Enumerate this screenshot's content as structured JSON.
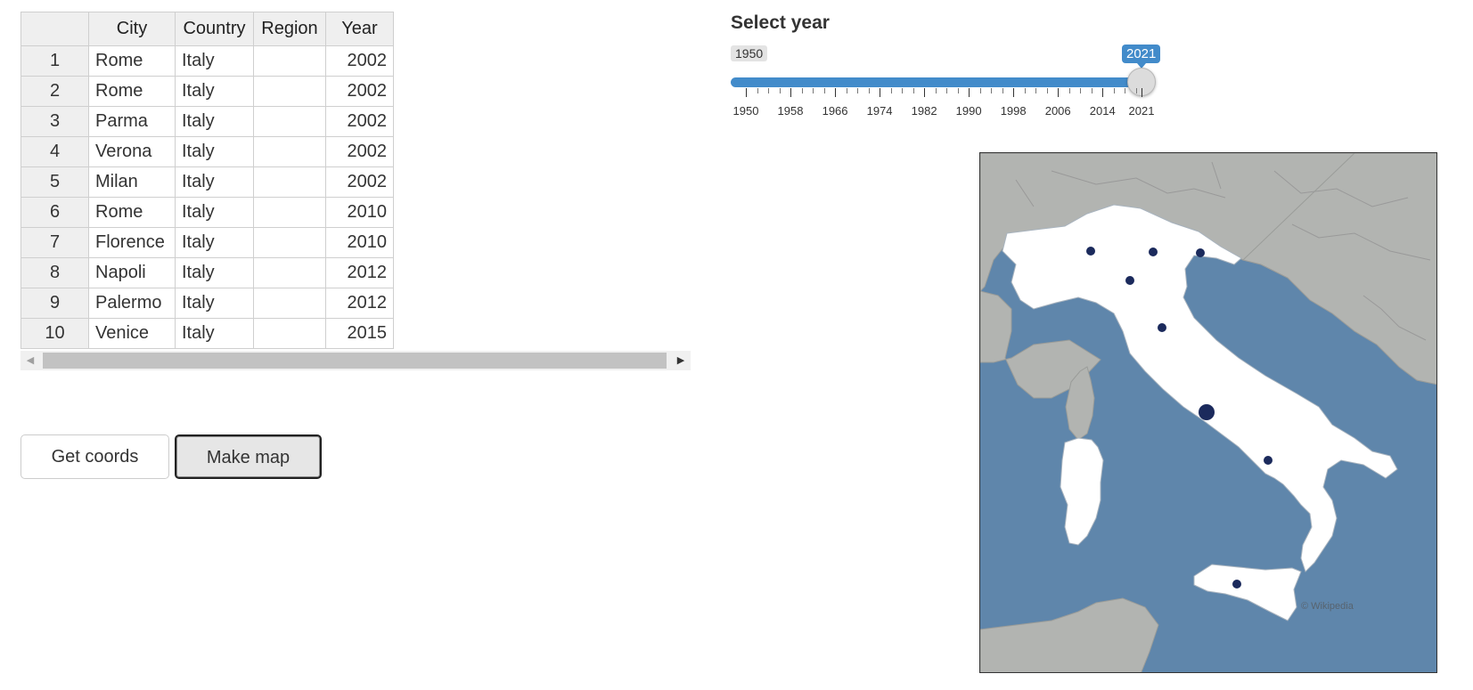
{
  "table": {
    "columns": [
      "",
      "City",
      "Country",
      "Region",
      "Year"
    ],
    "rows": [
      {
        "n": "1",
        "city": "Rome",
        "country": "Italy",
        "region": "",
        "year": "2002"
      },
      {
        "n": "2",
        "city": "Rome",
        "country": "Italy",
        "region": "",
        "year": "2002"
      },
      {
        "n": "3",
        "city": "Parma",
        "country": "Italy",
        "region": "",
        "year": "2002"
      },
      {
        "n": "4",
        "city": "Verona",
        "country": "Italy",
        "region": "",
        "year": "2002"
      },
      {
        "n": "5",
        "city": "Milan",
        "country": "Italy",
        "region": "",
        "year": "2002"
      },
      {
        "n": "6",
        "city": "Rome",
        "country": "Italy",
        "region": "",
        "year": "2010"
      },
      {
        "n": "7",
        "city": "Florence",
        "country": "Italy",
        "region": "",
        "year": "2010"
      },
      {
        "n": "8",
        "city": "Napoli",
        "country": "Italy",
        "region": "",
        "year": "2012"
      },
      {
        "n": "9",
        "city": "Palermo",
        "country": "Italy",
        "region": "",
        "year": "2012"
      },
      {
        "n": "10",
        "city": "Venice",
        "country": "Italy",
        "region": "",
        "year": "2015"
      }
    ]
  },
  "buttons": {
    "get_coords": "Get coords",
    "make_map": "Make map"
  },
  "slider": {
    "label": "Select year",
    "min": 1950,
    "max": 2021,
    "value": 2021,
    "min_label": "1950",
    "value_label": "2021",
    "tick_labels": [
      "1950",
      "1958",
      "1966",
      "1974",
      "1982",
      "1990",
      "1998",
      "2006",
      "2014",
      "2021"
    ]
  },
  "map": {
    "colors": {
      "sea": "#5f86ab",
      "land_focus": "#ffffff",
      "land_other": "#b2b4b1",
      "point": "#1b2a5c"
    },
    "attribution": "© Wikipedia"
  }
}
